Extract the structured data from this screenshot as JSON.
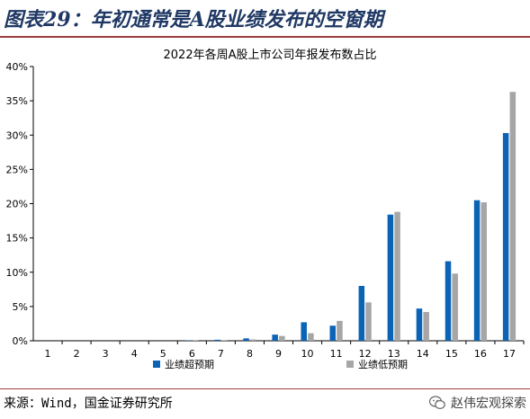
{
  "figure": {
    "title": "图表29：年初通常是A股业绩发布的空窗期",
    "source": "来源：Wind，国金证券研究所",
    "watermark": "赵伟宏观探索"
  },
  "colors": {
    "title_color": "#1f3864",
    "rule_color": "#9b3c3c",
    "series_beat": "#0b63b6",
    "series_miss": "#a6a6a6"
  },
  "chart_data": {
    "type": "bar",
    "title": "2022年各周A股上市公司年报发布数占比",
    "xlabel": "",
    "ylabel": "",
    "ylim": [
      0,
      40
    ],
    "yticks": [
      "0%",
      "5%",
      "10%",
      "15%",
      "20%",
      "25%",
      "30%",
      "35%",
      "40%"
    ],
    "categories": [
      "1",
      "2",
      "3",
      "4",
      "5",
      "6",
      "7",
      "8",
      "9",
      "10",
      "11",
      "12",
      "13",
      "14",
      "15",
      "16",
      "17"
    ],
    "series": [
      {
        "name": "业绩超预期",
        "color": "#0b63b6",
        "values": [
          0,
          0,
          0,
          0,
          0,
          0.05,
          0.15,
          0.35,
          0.9,
          2.7,
          2.2,
          8.0,
          18.4,
          4.7,
          11.6,
          20.5,
          30.3
        ]
      },
      {
        "name": "业绩低预期",
        "color": "#a6a6a6",
        "values": [
          0,
          0,
          0,
          0,
          0,
          0.05,
          0.1,
          0.2,
          0.7,
          1.1,
          2.9,
          5.6,
          18.8,
          4.2,
          9.8,
          20.2,
          36.3
        ]
      }
    ],
    "grid": false,
    "legend_position": "bottom"
  }
}
